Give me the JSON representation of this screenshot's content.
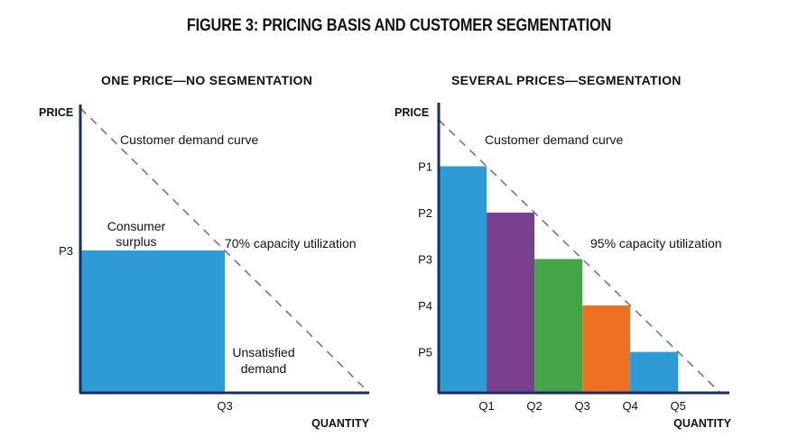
{
  "figure_title": "FIGURE 3: PRICING BASIS AND CUSTOMER SEGMENTATION",
  "chart_data": [
    {
      "type": "bar",
      "title": "ONE PRICE—NO SEGMENTATION",
      "xlabel": "QUANTITY",
      "ylabel": "PRICE",
      "demand_curve_label": "Customer demand curve",
      "xlim": [
        0,
        100
      ],
      "ylim": [
        0,
        100
      ],
      "demand_curve": {
        "x": [
          0,
          100
        ],
        "y": [
          100,
          0
        ]
      },
      "bars": [
        {
          "x_start": 0,
          "x_end": 50,
          "value": 50,
          "price_label": "P3",
          "quantity_label": "Q3",
          "color": "#2e9ad6"
        }
      ],
      "annotations": {
        "consumer_surplus": [
          "Consumer",
          "surplus"
        ],
        "utilization": "70% capacity utilization",
        "unsatisfied": [
          "Unsatisfied",
          "demand"
        ]
      }
    },
    {
      "type": "bar",
      "title": "SEVERAL PRICES—SEGMENTATION",
      "xlabel": "QUANTITY",
      "ylabel": "PRICE",
      "demand_curve_label": "Customer demand curve",
      "xlim": [
        0,
        100
      ],
      "ylim": [
        0,
        100
      ],
      "demand_curve": {
        "x": [
          0,
          100
        ],
        "y": [
          100,
          0
        ]
      },
      "bars": [
        {
          "x_start": 0,
          "x_end": 17,
          "value": 83,
          "price_label": "P1",
          "quantity_label": "Q1",
          "color": "#2e9ad6"
        },
        {
          "x_start": 17,
          "x_end": 34,
          "value": 66,
          "price_label": "P2",
          "quantity_label": "Q2",
          "color": "#7b3f90"
        },
        {
          "x_start": 34,
          "x_end": 51,
          "value": 49,
          "price_label": "P3",
          "quantity_label": "Q3",
          "color": "#44a447"
        },
        {
          "x_start": 51,
          "x_end": 68,
          "value": 32,
          "price_label": "P4",
          "quantity_label": "Q4",
          "color": "#ee7121"
        },
        {
          "x_start": 68,
          "x_end": 85,
          "value": 15,
          "price_label": "P5",
          "quantity_label": "Q5",
          "color": "#2e9ad6"
        }
      ],
      "annotations": {
        "utilization": "95% capacity utilization"
      }
    }
  ]
}
